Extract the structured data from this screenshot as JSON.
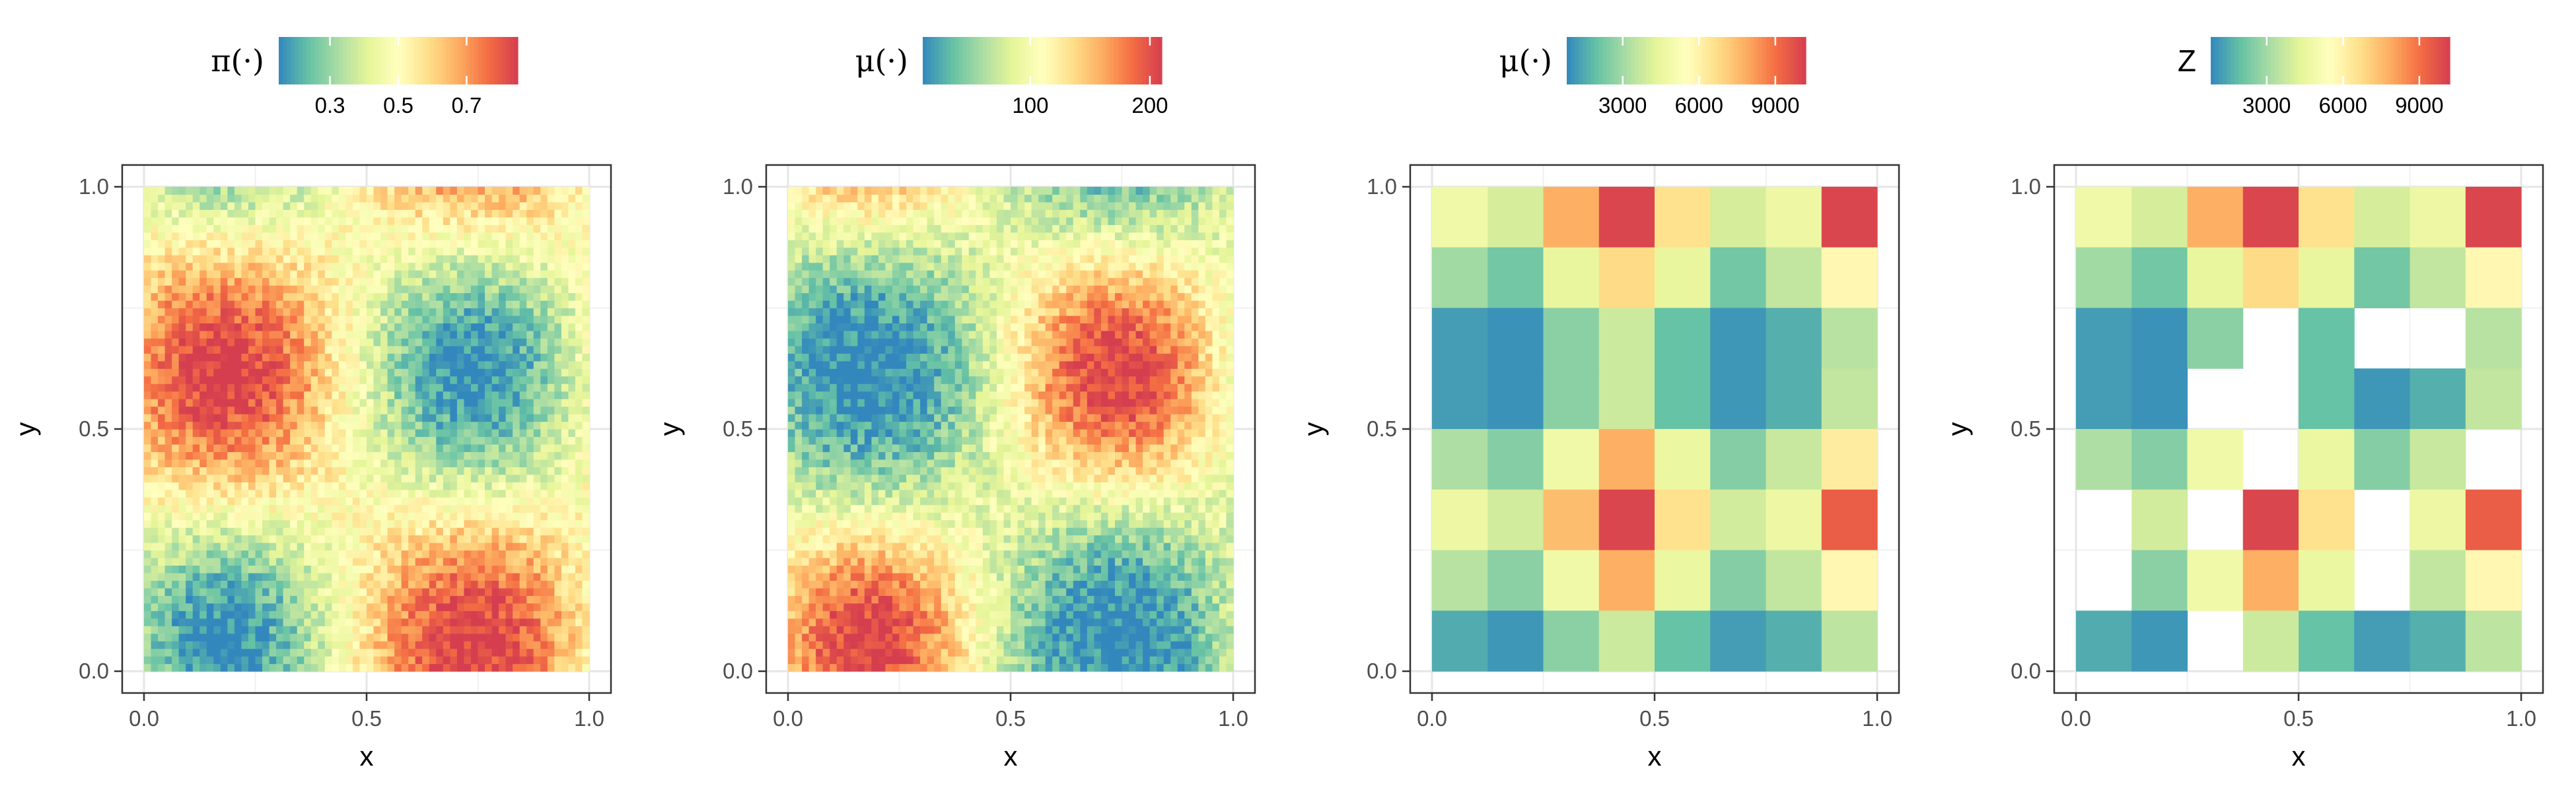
{
  "palette": [
    "#3288bd",
    "#66c2a5",
    "#abdda4",
    "#e6f598",
    "#ffffbf",
    "#fee08b",
    "#fdae61",
    "#f46d43",
    "#d53e4f"
  ],
  "chart_data": [
    {
      "type": "heatmap",
      "grid": "fine",
      "xlabel": "x",
      "ylabel": "y",
      "xlim": [
        0,
        1
      ],
      "ylim": [
        0,
        1
      ],
      "x_ticks": [
        "0.0",
        "0.5",
        "1.0"
      ],
      "y_ticks": [
        "0.0",
        "0.5",
        "1.0"
      ],
      "legend": {
        "title": "π(·)",
        "min": 0.15,
        "max": 0.85,
        "ticks": [
          "0.3",
          "0.5",
          "0.7"
        ],
        "tick_values": [
          0.3,
          0.5,
          0.7
        ]
      },
      "field": "pi"
    },
    {
      "type": "heatmap",
      "grid": "fine",
      "xlabel": "x",
      "ylabel": "y",
      "xlim": [
        0,
        1
      ],
      "ylim": [
        0,
        1
      ],
      "x_ticks": [
        "0.0",
        "0.5",
        "1.0"
      ],
      "y_ticks": [
        "0.0",
        "0.5",
        "1.0"
      ],
      "legend": {
        "title": "μ(·)",
        "min": 10,
        "max": 210,
        "ticks": [
          "100",
          "200"
        ],
        "tick_values": [
          100,
          200
        ]
      },
      "field": "mu"
    },
    {
      "type": "heatmap",
      "grid": "coarse",
      "xlabel": "x",
      "ylabel": "y",
      "xlim": [
        0,
        1
      ],
      "ylim": [
        0,
        1
      ],
      "x_ticks": [
        "0.0",
        "0.5",
        "1.0"
      ],
      "y_ticks": [
        "0.0",
        "0.5",
        "1.0"
      ],
      "legend": {
        "title": "μ(·)",
        "min": 800,
        "max": 10200,
        "ticks": [
          "3000",
          "6000",
          "9000"
        ],
        "tick_values": [
          3000,
          6000,
          9000
        ]
      },
      "rows_top_to_bottom": [
        [
          4800,
          4000,
          7800,
          10000,
          6600,
          4000,
          4700,
          10000
        ],
        [
          3000,
          2200,
          4500,
          6800,
          4500,
          2200,
          3600,
          5800
        ],
        [
          1200,
          1000,
          2600,
          3800,
          2000,
          1100,
          1600,
          3400
        ],
        [
          1200,
          1000,
          2600,
          3800,
          2000,
          1100,
          1600,
          3600
        ],
        [
          3200,
          2500,
          4800,
          7800,
          4600,
          2500,
          3700,
          6200
        ],
        [
          4700,
          3900,
          7500,
          10000,
          6600,
          3900,
          4700,
          9400
        ],
        [
          3400,
          2600,
          4800,
          7800,
          4600,
          2500,
          3600,
          5800
        ],
        [
          1500,
          1100,
          2600,
          3800,
          2000,
          1200,
          1600,
          3500
        ]
      ]
    },
    {
      "type": "heatmap",
      "grid": "coarse",
      "xlabel": "x",
      "ylabel": "y",
      "xlim": [
        0,
        1
      ],
      "ylim": [
        0,
        1
      ],
      "x_ticks": [
        "0.0",
        "0.5",
        "1.0"
      ],
      "y_ticks": [
        "0.0",
        "0.5",
        "1.0"
      ],
      "legend": {
        "title": "Z",
        "min": 800,
        "max": 10200,
        "ticks": [
          "3000",
          "6000",
          "9000"
        ],
        "tick_values": [
          3000,
          6000,
          9000
        ]
      },
      "rows_top_to_bottom": [
        [
          4800,
          4000,
          7800,
          10000,
          6600,
          4000,
          4700,
          10000
        ],
        [
          3000,
          2200,
          4500,
          6800,
          4500,
          2200,
          3600,
          5800
        ],
        [
          1200,
          1000,
          2600,
          null,
          2000,
          null,
          null,
          3400
        ],
        [
          1200,
          1000,
          null,
          null,
          2000,
          1100,
          1600,
          3600
        ],
        [
          3200,
          2500,
          4800,
          null,
          4600,
          2500,
          3700,
          null
        ],
        [
          null,
          3900,
          null,
          10000,
          6600,
          null,
          4700,
          9400
        ],
        [
          null,
          2600,
          4800,
          7800,
          4600,
          null,
          3600,
          5800
        ],
        [
          1500,
          1100,
          null,
          3800,
          2000,
          1200,
          1600,
          3500
        ]
      ]
    }
  ]
}
